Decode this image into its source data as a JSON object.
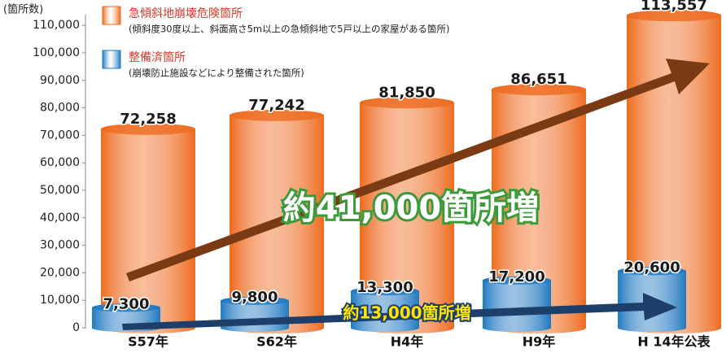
{
  "chart_data": {
    "type": "bar",
    "y_label": "(箇所数)",
    "categories": [
      "S57年",
      "S62年",
      "H4年",
      "H9年",
      "H 14年公表"
    ],
    "series": [
      {
        "name": "急傾斜地崩壊危険箇所",
        "note": "(傾斜度30度以上、斜面高さ5m以上の急傾斜地で5戸以上の家屋がある箇所)",
        "color": "#ee6a1e",
        "values": [
          72258,
          77242,
          81850,
          86651,
          113557
        ],
        "value_labels": [
          "72,258",
          "77,242",
          "81,850",
          "86,651",
          "113,557"
        ]
      },
      {
        "name": "整備済箇所",
        "note": "(崩壊防止施設などにより整備された箇所)",
        "color": "#1f78c0",
        "values": [
          7300,
          9800,
          13300,
          17200,
          20600
        ],
        "value_labels": [
          "7,300",
          "9,800",
          "13,300",
          "17,200",
          "20,600"
        ]
      }
    ],
    "ylim": [
      0,
      115000
    ],
    "yticks": [
      0,
      {
        "value": 10000,
        "label": "10,000"
      },
      {
        "value": 20000,
        "label": "20,000"
      },
      {
        "value": 30000,
        "label": "30,000"
      },
      {
        "value": 40000,
        "label": "40,000"
      },
      {
        "value": 50000,
        "label": "50,000"
      },
      {
        "value": 60000,
        "label": "60,000"
      },
      {
        "value": 70000,
        "label": "70,000"
      },
      {
        "value": 80000,
        "label": "80,000"
      },
      {
        "value": 90000,
        "label": "90,000"
      },
      {
        "value": 100000,
        "label": "100,000"
      },
      {
        "value": 110000,
        "label": "110,000"
      }
    ],
    "grid": false,
    "legend": "top-left",
    "annotations": [
      "約41,000箇所増",
      "約13,000箇所増"
    ]
  }
}
